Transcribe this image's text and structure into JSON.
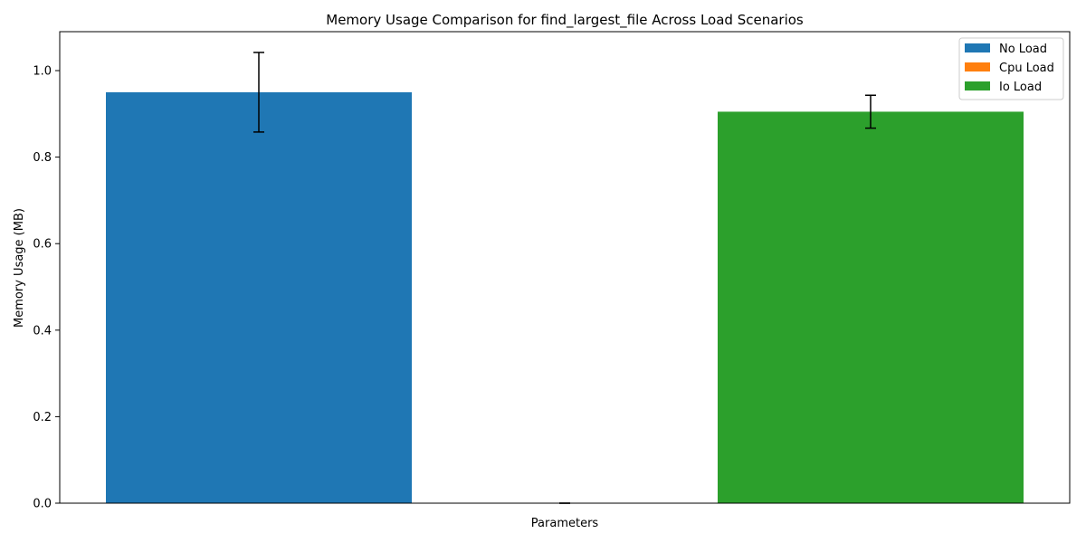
{
  "chart_data": {
    "type": "bar",
    "title": "Memory Usage Comparison for find_largest_file Across Load Scenarios",
    "xlabel": "Parameters",
    "ylabel": "Memory Usage (MB)",
    "ylim": [
      0,
      1.09
    ],
    "yticks": [
      0.0,
      0.2,
      0.4,
      0.6,
      0.8,
      1.0
    ],
    "ytick_labels": [
      "0.0",
      "0.2",
      "0.4",
      "0.6",
      "0.8",
      "1.0"
    ],
    "grid": false,
    "legend_position": "top-right",
    "series": [
      {
        "name": "No Load",
        "value": 0.95,
        "error": 0.092,
        "color": "#1f77b4"
      },
      {
        "name": "Cpu Load",
        "value": 0.0,
        "error": 0.0,
        "color": "#ff7f0e"
      },
      {
        "name": "Io Load",
        "value": 0.905,
        "error": 0.038,
        "color": "#2ca02c"
      }
    ]
  }
}
